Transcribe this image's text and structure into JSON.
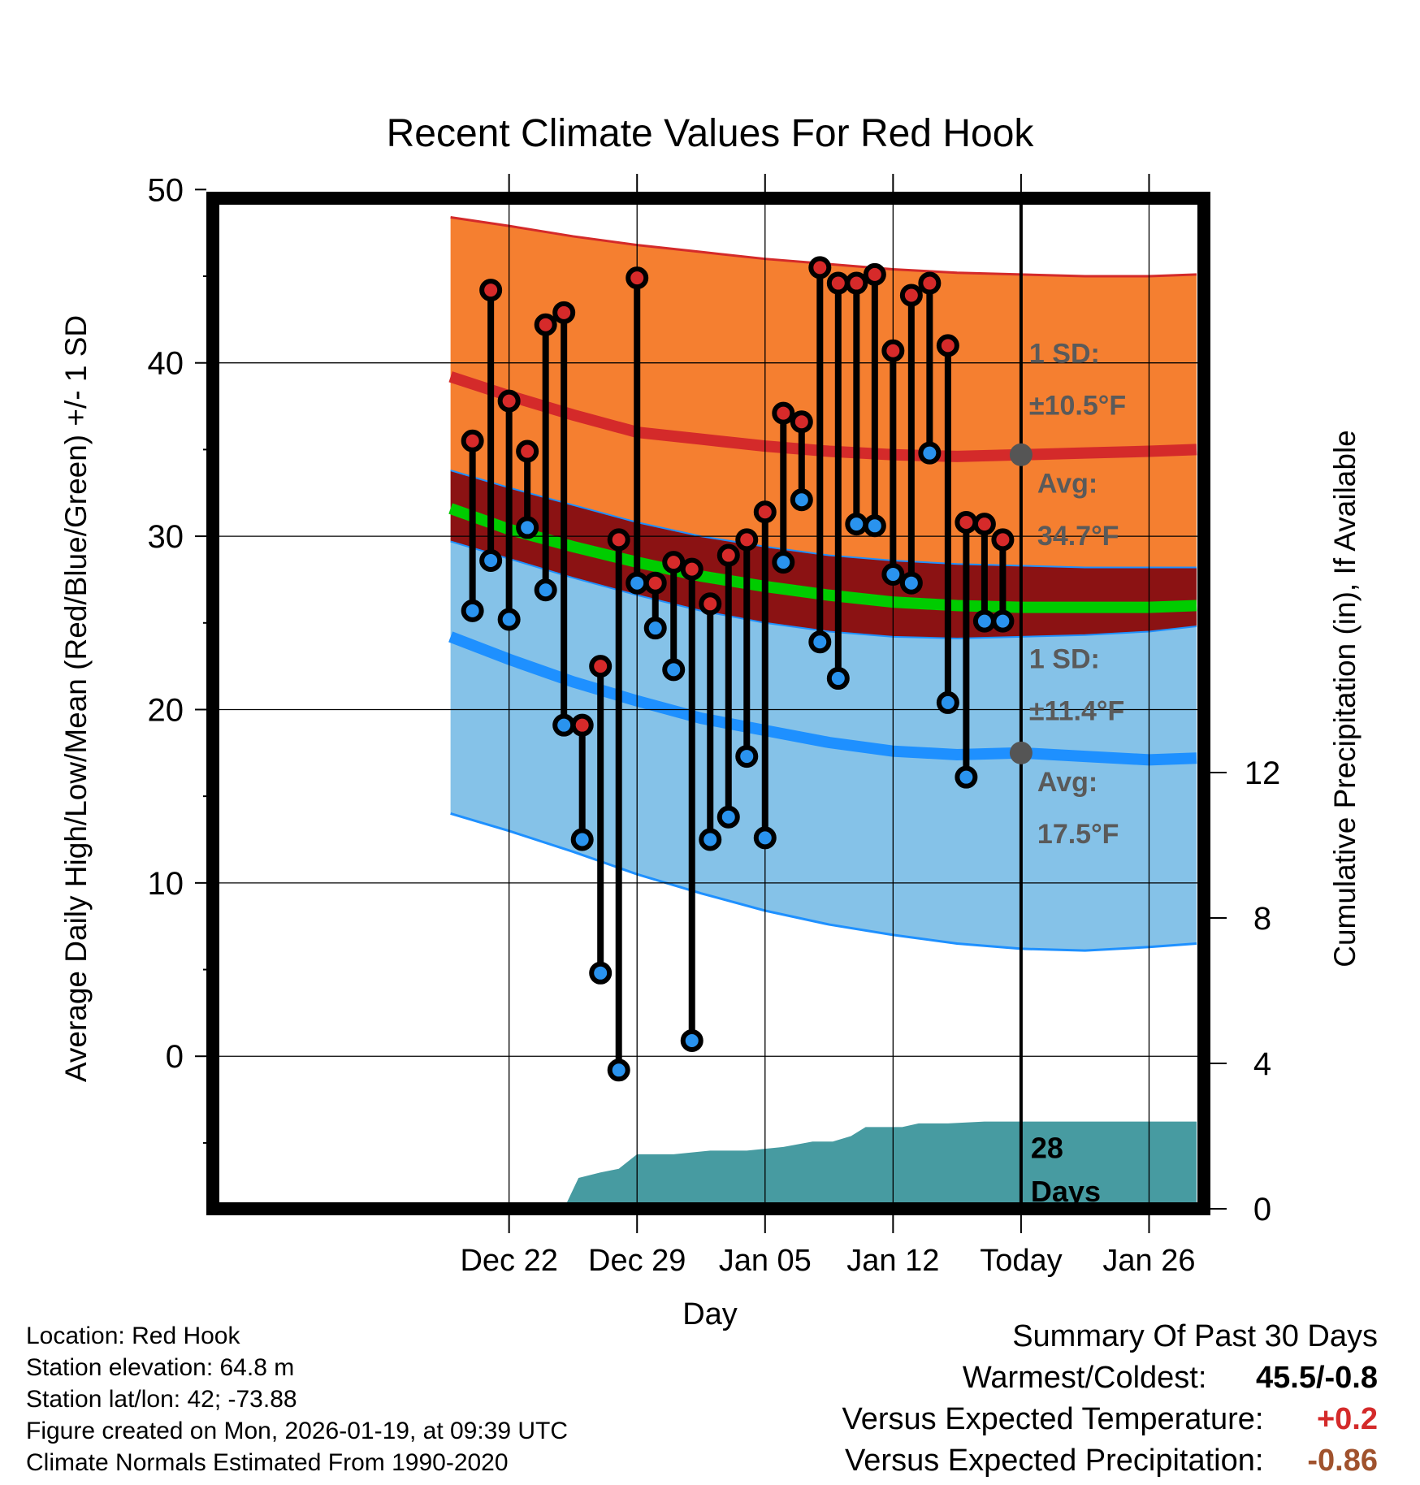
{
  "title": "Recent Climate Values For Red Hook",
  "chart_data": {
    "type": "line",
    "title": "Recent Climate Values For Red Hook",
    "xlabel": "Day",
    "ylabel": "Average Daily High/Low/Mean (Red/Blue/Green) +/- 1 SD",
    "ylabel_right": "Cumulative Precipitation (in), If Available",
    "ylim": [
      -8.8,
      49.5
    ],
    "y_ticks": [
      0,
      10,
      20,
      30,
      40,
      50
    ],
    "y2lim": [
      0,
      27.8
    ],
    "y2_ticks": [
      0,
      4,
      8,
      12
    ],
    "x_range_days": [
      -44.2,
      10
    ],
    "x_ticks": [
      {
        "day": -28,
        "label": "Dec 22"
      },
      {
        "day": -21,
        "label": "Dec 29"
      },
      {
        "day": -14,
        "label": "Jan 05"
      },
      {
        "day": -7,
        "label": "Jan 12"
      },
      {
        "day": 0,
        "label": "Today"
      },
      {
        "day": 7,
        "label": "Jan 26"
      }
    ],
    "normals": {
      "days": [
        -31.2,
        -28,
        -24.5,
        -21,
        -17.5,
        -14,
        -10.5,
        -7,
        -3.5,
        0,
        3.5,
        7,
        9.6
      ],
      "high_avg": [
        39.2,
        38.1,
        37.0,
        36.0,
        35.6,
        35.2,
        34.9,
        34.7,
        34.6,
        34.7,
        34.8,
        34.9,
        35.0
      ],
      "high_plus_sd": [
        48.4,
        47.9,
        47.3,
        46.8,
        46.4,
        46.0,
        45.7,
        45.4,
        45.2,
        45.1,
        45.0,
        45.0,
        45.1
      ],
      "high_minus_sd": [
        33.8,
        32.8,
        31.8,
        30.8,
        30.0,
        29.4,
        28.9,
        28.6,
        28.4,
        28.3,
        28.2,
        28.2,
        28.2
      ],
      "mean": [
        31.6,
        30.4,
        29.4,
        28.5,
        27.7,
        27.1,
        26.6,
        26.2,
        26.0,
        25.9,
        25.9,
        25.9,
        26.0
      ],
      "low_avg": [
        24.2,
        22.9,
        21.6,
        20.5,
        19.5,
        18.8,
        18.1,
        17.6,
        17.4,
        17.5,
        17.3,
        17.1,
        17.2
      ],
      "low_plus_sd": [
        29.7,
        28.7,
        27.6,
        26.6,
        25.7,
        25.0,
        24.5,
        24.2,
        24.1,
        24.2,
        24.3,
        24.5,
        24.8
      ],
      "low_minus_sd": [
        14.0,
        13.0,
        11.8,
        10.5,
        9.4,
        8.4,
        7.6,
        7.0,
        6.5,
        6.2,
        6.1,
        6.3,
        6.5
      ]
    },
    "daily_days": [
      -30,
      -29,
      -28,
      -27,
      -26,
      -25,
      -24,
      -23,
      -22,
      -21,
      -20,
      -19,
      -18,
      -17,
      -16,
      -15,
      -14,
      -13,
      -12,
      -11,
      -10,
      -9,
      -8,
      -7,
      -6,
      -5,
      -4,
      -3,
      -2,
      -1
    ],
    "daily_highs": [
      35.5,
      44.2,
      37.8,
      34.9,
      42.2,
      42.9,
      19.1,
      22.5,
      29.8,
      44.9,
      27.3,
      28.5,
      28.1,
      26.1,
      28.9,
      29.8,
      31.4,
      37.1,
      36.6,
      45.5,
      44.6,
      44.6,
      45.1,
      40.7,
      43.9,
      44.6,
      41.0,
      30.8,
      30.7,
      29.8
    ],
    "daily_lows": [
      25.7,
      28.6,
      25.2,
      30.5,
      26.9,
      19.1,
      12.5,
      4.8,
      -0.8,
      27.3,
      24.7,
      22.3,
      0.9,
      12.5,
      13.8,
      17.3,
      12.6,
      28.5,
      32.1,
      23.9,
      21.8,
      30.7,
      30.6,
      27.8,
      27.3,
      34.8,
      20.4,
      16.1,
      25.1,
      25.1
    ],
    "precip_cumulative": {
      "days": [
        -25,
        -24.2,
        -23,
        -22,
        -21,
        -19,
        -17,
        -15,
        -13,
        -11.4,
        -10.3,
        -9.3,
        -8.5,
        -7.5,
        -6.5,
        -5.6,
        -4,
        -2,
        0,
        5,
        9.6
      ],
      "values": [
        0,
        0.85,
        1.0,
        1.1,
        1.5,
        1.5,
        1.6,
        1.6,
        1.7,
        1.85,
        1.85,
        2.0,
        2.25,
        2.25,
        2.25,
        2.35,
        2.35,
        2.4,
        2.4,
        2.4,
        2.4
      ]
    },
    "annotations": {
      "high_sd_label": "1 SD:",
      "high_sd_value": "±10.5°F",
      "high_avg_label": "Avg:",
      "high_avg_value": "34.7°F",
      "low_sd_label": "1 SD:",
      "low_sd_value": "±11.4°F",
      "low_avg_label": "Avg:",
      "low_avg_value": "17.5°F",
      "precip_label_1": "28",
      "precip_label_2": "Days",
      "today_high_avg": 34.7,
      "today_low_avg": 17.5
    }
  },
  "info": {
    "location": "Location: Red Hook",
    "elevation": "Station elevation: 64.8 m",
    "latlon": "Station lat/lon: 42; -73.88",
    "created": "Figure created on Mon, 2026-01-19, at 09:39 UTC",
    "normals": "Climate Normals Estimated From 1990-2020"
  },
  "summary": {
    "heading": "Summary Of Past 30 Days",
    "warmest_coldest_label": "Warmest/Coldest:",
    "warmest_coldest_value": "45.5/-0.8",
    "temp_label": "Versus Expected Temperature:",
    "temp_value": "+0.2",
    "precip_label": "Versus Expected Precipitation:",
    "precip_value": "-0.86"
  },
  "colors": {
    "high_band": "#f57f30",
    "high_line": "#d42a2a",
    "overlap_band": "#8b1213",
    "mean_line": "#00cc00",
    "low_band": "#85c2e8",
    "low_line": "#1e90ff",
    "precip_fill": "#479ba1",
    "high_dot": "#d62a2a",
    "low_dot": "#2a93ee",
    "annotation": "#5a5a5a",
    "temp_value": "#d42a2a",
    "precip_value": "#a0522d"
  }
}
